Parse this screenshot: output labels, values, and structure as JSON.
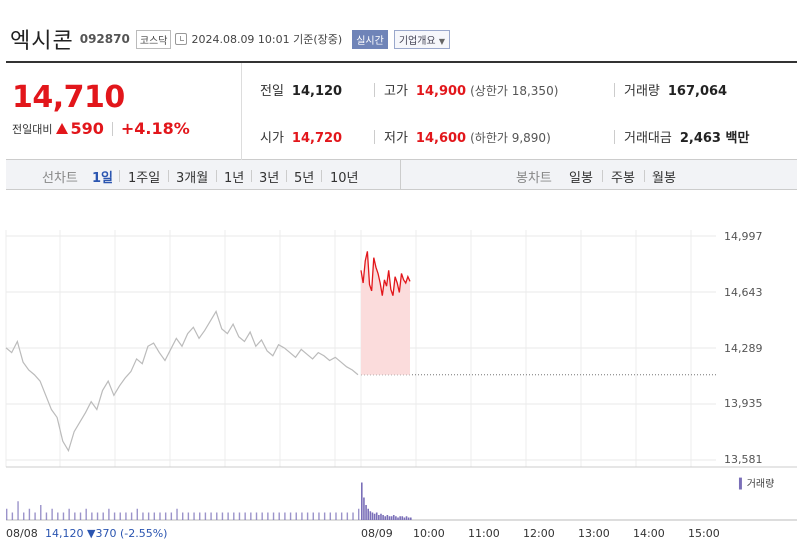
{
  "header": {
    "name": "엑시콘",
    "code": "092870",
    "market": "코스닥",
    "date": "2024.08.09 10:01 기준(장중)",
    "realtime": "실시간",
    "overview": "기업개요"
  },
  "price": {
    "current": "14,710",
    "change_label": "전일대비",
    "change": "590",
    "change_pct": "+4.18%"
  },
  "stats": {
    "prev_close": {
      "label": "전일",
      "value": "14,120"
    },
    "high": {
      "label": "고가",
      "value": "14,900",
      "sub": "(상한가 18,350)"
    },
    "volume": {
      "label": "거래량",
      "value": "167,064"
    },
    "open": {
      "label": "시가",
      "value": "14,720"
    },
    "low": {
      "label": "저가",
      "value": "14,600",
      "sub": "(하한가 9,890)"
    },
    "amount": {
      "label": "거래대금",
      "value": "2,463 백만"
    }
  },
  "tabs": {
    "line_label": "선차트",
    "periods": [
      "1일",
      "1주일",
      "3개월",
      "1년",
      "3년",
      "5년",
      "10년"
    ],
    "selected": "1일",
    "candle_label": "봉차트",
    "candles": [
      "일봉",
      "주봉",
      "월봉"
    ]
  },
  "colors": {
    "up": "#e2161b",
    "down": "#2b55b0",
    "prev": "#bbbbbb",
    "volume": "#7a6fb8"
  },
  "chart_data": {
    "type": "line",
    "y_ticks": [
      "14,997",
      "14,643",
      "14,289",
      "13,935",
      "13,581"
    ],
    "ylim": [
      13581,
      14997
    ],
    "prev_close": 14120,
    "x_ticks": [
      "10:00",
      "11:00",
      "12:00",
      "13:00",
      "14:00",
      "15:00"
    ],
    "prev_day_label": "08/08",
    "prev_day_summary": {
      "close": "14,120",
      "change": "370",
      "pct": "(-2.55%)"
    },
    "today_label": "08/09",
    "volume_legend": "거래량",
    "prev_day_series": [
      14290,
      14260,
      14330,
      14200,
      14150,
      14120,
      14080,
      13990,
      13900,
      13850,
      13700,
      13640,
      13760,
      13820,
      13880,
      13950,
      13900,
      14020,
      14080,
      13990,
      14050,
      14100,
      14140,
      14220,
      14190,
      14300,
      14320,
      14260,
      14210,
      14280,
      14350,
      14300,
      14380,
      14420,
      14350,
      14400,
      14460,
      14520,
      14410,
      14380,
      14440,
      14360,
      14330,
      14390,
      14300,
      14340,
      14270,
      14240,
      14310,
      14290,
      14260,
      14230,
      14280,
      14250,
      14220,
      14260,
      14240,
      14210,
      14230,
      14200,
      14170,
      14150,
      14120
    ],
    "today_series": [
      14780,
      14700,
      14840,
      14900,
      14690,
      14650,
      14860,
      14800,
      14760,
      14700,
      14620,
      14720,
      14680,
      14780,
      14660,
      14620,
      14740,
      14700,
      14640,
      14760,
      14720,
      14700,
      14740,
      14710
    ],
    "prev_day_volume": [
      3,
      2,
      5,
      2,
      3,
      2,
      4,
      2,
      3,
      2,
      2,
      3,
      2,
      2,
      3,
      2,
      2,
      2,
      3,
      2,
      2,
      2,
      2,
      3,
      2,
      2,
      2,
      2,
      2,
      2,
      3,
      2,
      2,
      2,
      2,
      2,
      2,
      2,
      2,
      2,
      2,
      2,
      2,
      2,
      2,
      2,
      2,
      2,
      2,
      2,
      2,
      2,
      2,
      2,
      2,
      2,
      2,
      2,
      2,
      2,
      2,
      2,
      3
    ],
    "today_volume": [
      30,
      18,
      12,
      9,
      7,
      6,
      5,
      6,
      4,
      5,
      4,
      3,
      4,
      3,
      3,
      4,
      3,
      2,
      3,
      3,
      2,
      3,
      2,
      2
    ]
  }
}
